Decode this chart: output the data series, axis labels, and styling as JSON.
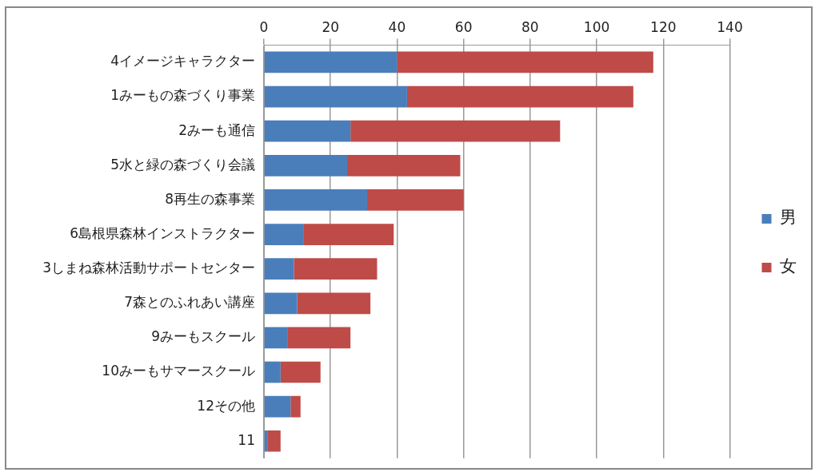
{
  "chart_data": {
    "type": "bar",
    "orientation": "horizontal",
    "stacked": true,
    "categories": [
      "4イメージキャラクター",
      "1みーもの森づくり事業",
      "2みーも通信",
      "5水と緑の森づくり会議",
      "8再生の森事業",
      "6島根県森林インストラクター",
      "3しまね森林活動サポートセンター",
      "7森とのふれあい講座",
      "9みーもスクール",
      "10みーもサマースクール",
      "12その他",
      "11"
    ],
    "series": [
      {
        "name": "男",
        "color": "#4a7ebb",
        "values": [
          40,
          43,
          26,
          25,
          31,
          12,
          9,
          10,
          7,
          5,
          8,
          1
        ]
      },
      {
        "name": "女",
        "color": "#be4b48",
        "values": [
          77,
          68,
          63,
          34,
          29,
          27,
          25,
          22,
          19,
          12,
          3,
          4
        ]
      }
    ],
    "xlim": [
      0,
      140
    ],
    "xticks": [
      0,
      20,
      40,
      60,
      80,
      100,
      120,
      140
    ],
    "grid": "x",
    "legend": "right"
  }
}
